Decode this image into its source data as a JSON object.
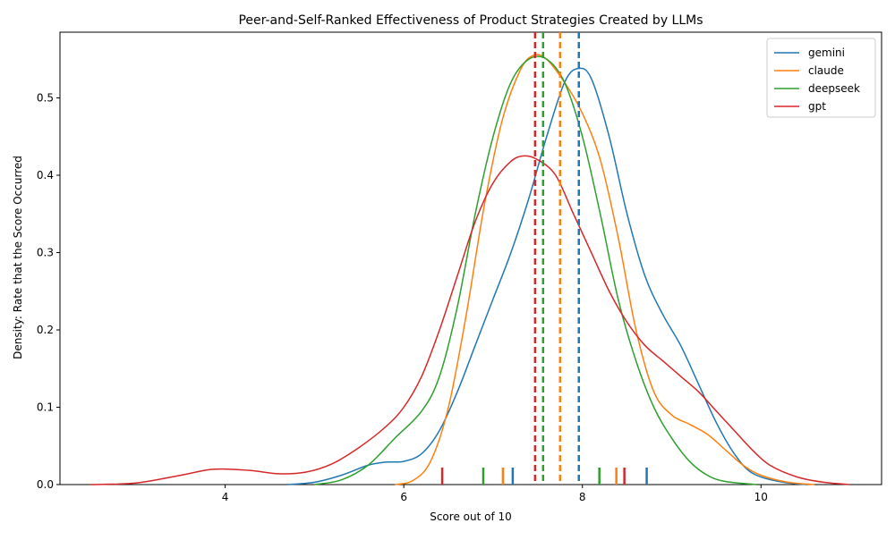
{
  "chart_data": {
    "type": "line",
    "title": "Peer-and-Self-Ranked Effectiveness of Product Strategies Created by LLMs",
    "xlabel": "Score out of 10",
    "ylabel": "Density: Rate that the Score Occurred",
    "xlim": [
      2.15,
      11.35
    ],
    "ylim": [
      0,
      0.585
    ],
    "xticks": [
      4,
      6,
      8,
      10
    ],
    "yticks": [
      0.0,
      0.1,
      0.2,
      0.3,
      0.4,
      0.5
    ],
    "grid": false,
    "legend_position": "top-right",
    "series": [
      {
        "name": "gemini",
        "color": "#1f77b4",
        "mean": 7.96,
        "rugs": [
          7.22,
          8.72
        ],
        "points": [
          [
            4.7,
            0.0
          ],
          [
            5.0,
            0.003
          ],
          [
            5.3,
            0.012
          ],
          [
            5.6,
            0.025
          ],
          [
            5.8,
            0.029
          ],
          [
            6.0,
            0.03
          ],
          [
            6.2,
            0.04
          ],
          [
            6.4,
            0.07
          ],
          [
            6.6,
            0.12
          ],
          [
            6.8,
            0.18
          ],
          [
            7.0,
            0.24
          ],
          [
            7.2,
            0.3
          ],
          [
            7.4,
            0.37
          ],
          [
            7.6,
            0.45
          ],
          [
            7.8,
            0.52
          ],
          [
            7.95,
            0.538
          ],
          [
            8.1,
            0.525
          ],
          [
            8.3,
            0.45
          ],
          [
            8.5,
            0.35
          ],
          [
            8.7,
            0.27
          ],
          [
            8.9,
            0.22
          ],
          [
            9.1,
            0.18
          ],
          [
            9.3,
            0.13
          ],
          [
            9.5,
            0.08
          ],
          [
            9.7,
            0.04
          ],
          [
            9.9,
            0.015
          ],
          [
            10.2,
            0.004
          ],
          [
            10.5,
            0.0
          ]
        ]
      },
      {
        "name": "claude",
        "color": "#ff7f0e",
        "mean": 7.75,
        "rugs": [
          7.11,
          8.38
        ],
        "points": [
          [
            5.9,
            0.0
          ],
          [
            6.1,
            0.005
          ],
          [
            6.3,
            0.03
          ],
          [
            6.5,
            0.1
          ],
          [
            6.7,
            0.22
          ],
          [
            6.9,
            0.36
          ],
          [
            7.1,
            0.47
          ],
          [
            7.3,
            0.535
          ],
          [
            7.45,
            0.555
          ],
          [
            7.6,
            0.55
          ],
          [
            7.8,
            0.52
          ],
          [
            8.0,
            0.48
          ],
          [
            8.2,
            0.42
          ],
          [
            8.4,
            0.32
          ],
          [
            8.6,
            0.2
          ],
          [
            8.8,
            0.12
          ],
          [
            9.0,
            0.09
          ],
          [
            9.2,
            0.078
          ],
          [
            9.4,
            0.065
          ],
          [
            9.6,
            0.045
          ],
          [
            9.8,
            0.025
          ],
          [
            10.0,
            0.012
          ],
          [
            10.3,
            0.003
          ],
          [
            10.6,
            0.0
          ]
        ]
      },
      {
        "name": "deepseek",
        "color": "#2ca02c",
        "mean": 7.56,
        "rugs": [
          6.89,
          8.19
        ],
        "points": [
          [
            5.0,
            0.0
          ],
          [
            5.3,
            0.006
          ],
          [
            5.6,
            0.025
          ],
          [
            5.9,
            0.06
          ],
          [
            6.2,
            0.095
          ],
          [
            6.4,
            0.14
          ],
          [
            6.6,
            0.23
          ],
          [
            6.8,
            0.35
          ],
          [
            7.0,
            0.45
          ],
          [
            7.2,
            0.52
          ],
          [
            7.4,
            0.55
          ],
          [
            7.6,
            0.55
          ],
          [
            7.8,
            0.52
          ],
          [
            8.0,
            0.45
          ],
          [
            8.2,
            0.35
          ],
          [
            8.4,
            0.24
          ],
          [
            8.6,
            0.16
          ],
          [
            8.8,
            0.1
          ],
          [
            9.0,
            0.06
          ],
          [
            9.2,
            0.03
          ],
          [
            9.4,
            0.012
          ],
          [
            9.6,
            0.004
          ],
          [
            9.95,
            0.0
          ]
        ]
      },
      {
        "name": "gpt",
        "color": "#d62728",
        "mean": 7.47,
        "rugs": [
          6.43,
          8.47
        ],
        "points": [
          [
            2.5,
            0.0
          ],
          [
            3.0,
            0.002
          ],
          [
            3.5,
            0.012
          ],
          [
            3.8,
            0.019
          ],
          [
            4.0,
            0.02
          ],
          [
            4.3,
            0.018
          ],
          [
            4.6,
            0.014
          ],
          [
            4.9,
            0.016
          ],
          [
            5.2,
            0.027
          ],
          [
            5.5,
            0.048
          ],
          [
            5.8,
            0.075
          ],
          [
            6.0,
            0.1
          ],
          [
            6.2,
            0.14
          ],
          [
            6.4,
            0.2
          ],
          [
            6.6,
            0.27
          ],
          [
            6.8,
            0.34
          ],
          [
            7.0,
            0.39
          ],
          [
            7.2,
            0.418
          ],
          [
            7.35,
            0.425
          ],
          [
            7.5,
            0.42
          ],
          [
            7.7,
            0.4
          ],
          [
            7.9,
            0.35
          ],
          [
            8.1,
            0.3
          ],
          [
            8.3,
            0.25
          ],
          [
            8.5,
            0.21
          ],
          [
            8.7,
            0.18
          ],
          [
            8.9,
            0.16
          ],
          [
            9.1,
            0.14
          ],
          [
            9.3,
            0.12
          ],
          [
            9.5,
            0.095
          ],
          [
            9.7,
            0.07
          ],
          [
            9.9,
            0.045
          ],
          [
            10.1,
            0.025
          ],
          [
            10.4,
            0.01
          ],
          [
            10.7,
            0.003
          ],
          [
            11.0,
            0.0
          ]
        ]
      }
    ]
  }
}
